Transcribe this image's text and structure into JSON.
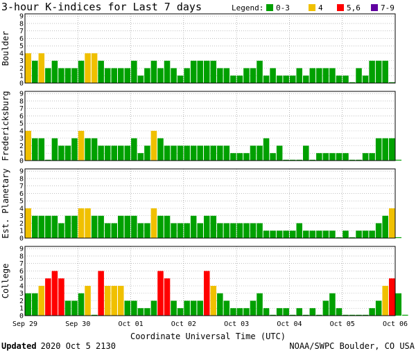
{
  "chart_data": {
    "type": "bar",
    "title": "3-hour K-indices for Last 7 days",
    "legend": {
      "label": "Legend:",
      "placement": "top-right",
      "items": [
        {
          "label": "0-3",
          "color": "#00a000"
        },
        {
          "label": "4",
          "color": "#f0c000"
        },
        {
          "label": "5,6",
          "color": "#ff0000"
        },
        {
          "label": "7-9",
          "color": "#6000a0"
        }
      ]
    },
    "xlabel": "Coordinate Universal Time (UTC)",
    "x_ticks": [
      "Sep 29",
      "Sep 30",
      "Oct 01",
      "Oct 02",
      "Oct 03",
      "Oct 04",
      "Oct 05",
      "Oct 06"
    ],
    "y_ticks": [
      "0",
      "1",
      "2",
      "3",
      "4",
      "5",
      "6",
      "7",
      "8",
      "9"
    ],
    "ylim": [
      0,
      9
    ],
    "grid": "horizontal dotted",
    "series": [
      {
        "name": "Boulder",
        "values": [
          4,
          3,
          4,
          2,
          3,
          2,
          2,
          2,
          3,
          4,
          4,
          3,
          2,
          2,
          2,
          2,
          3,
          1,
          2,
          3,
          2,
          3,
          2,
          1,
          2,
          3,
          3,
          3,
          3,
          2,
          2,
          1,
          1,
          2,
          2,
          3,
          1,
          2,
          1,
          1,
          1,
          2,
          1,
          2,
          2,
          2,
          2,
          1,
          1,
          0,
          2,
          1,
          3,
          3,
          3,
          0
        ]
      },
      {
        "name": "Fredericksburg",
        "values": [
          4,
          3,
          3,
          0,
          3,
          2,
          2,
          3,
          4,
          3,
          3,
          2,
          2,
          2,
          2,
          2,
          3,
          1,
          2,
          4,
          3,
          2,
          2,
          2,
          2,
          2,
          2,
          2,
          2,
          2,
          2,
          1,
          1,
          1,
          2,
          2,
          3,
          1,
          2,
          0,
          0,
          0,
          2,
          0,
          1,
          1,
          1,
          1,
          1,
          0,
          0,
          1,
          1,
          3,
          3,
          3,
          0
        ]
      },
      {
        "name": "Est. Planetary",
        "values": [
          4,
          3,
          3,
          3,
          3,
          2,
          3,
          3,
          4,
          4,
          3,
          3,
          2,
          2,
          3,
          3,
          3,
          2,
          2,
          4,
          3,
          3,
          2,
          2,
          2,
          3,
          2,
          3,
          3,
          2,
          2,
          2,
          2,
          2,
          2,
          2,
          1,
          1,
          1,
          1,
          1,
          2,
          1,
          1,
          1,
          1,
          1,
          0,
          1,
          0,
          1,
          1,
          1,
          2,
          3,
          4,
          0
        ]
      },
      {
        "name": "College",
        "values": [
          3,
          3,
          4,
          5,
          6,
          5,
          2,
          2,
          3,
          4,
          0,
          6,
          4,
          4,
          4,
          2,
          2,
          1,
          1,
          2,
          6,
          5,
          2,
          1,
          2,
          2,
          2,
          6,
          4,
          3,
          2,
          1,
          1,
          1,
          2,
          3,
          1,
          0,
          1,
          1,
          0,
          1,
          0,
          1,
          0,
          2,
          3,
          1,
          0,
          0,
          0,
          0,
          1,
          2,
          4,
          5,
          3,
          0
        ]
      }
    ]
  },
  "footer": {
    "updated_label": "Updated",
    "updated_value": "2020 Oct  5 2130",
    "source": "NOAA/SWPC Boulder, CO USA"
  }
}
